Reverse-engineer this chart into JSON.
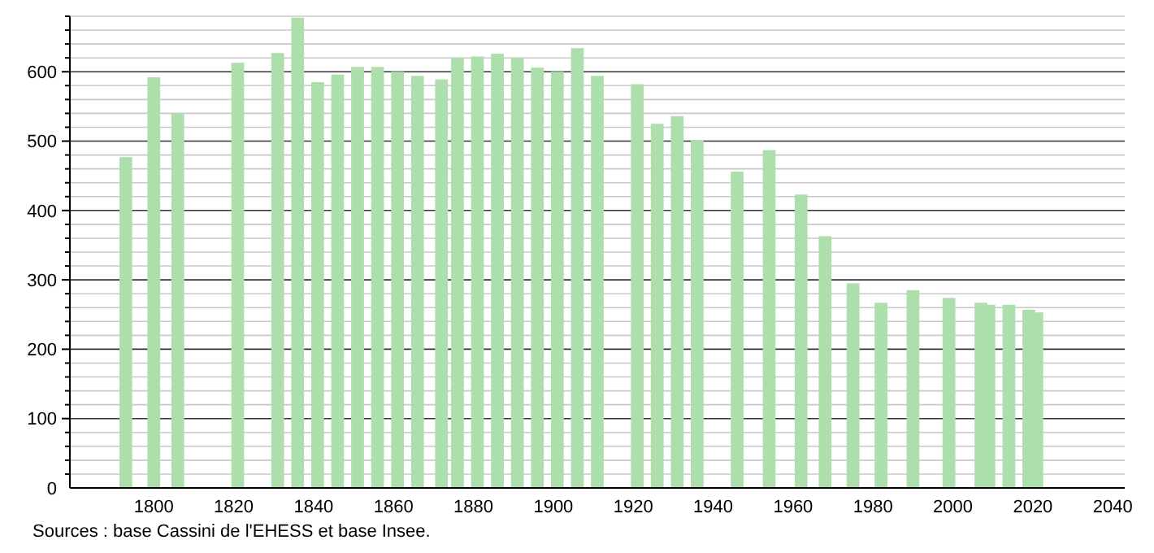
{
  "chart_data": {
    "type": "bar",
    "color": "#addfad",
    "x": [
      1793,
      1800,
      1806,
      1821,
      1831,
      1836,
      1841,
      1846,
      1851,
      1856,
      1861,
      1866,
      1872,
      1876,
      1881,
      1886,
      1891,
      1896,
      1901,
      1906,
      1911,
      1921,
      1926,
      1931,
      1936,
      1946,
      1954,
      1962,
      1968,
      1975,
      1982,
      1990,
      1999,
      2007,
      2009,
      2014,
      2019,
      2021
    ],
    "values": [
      477,
      592,
      540,
      613,
      627,
      678,
      585,
      596,
      607,
      607,
      600,
      594,
      589,
      620,
      622,
      626,
      620,
      606,
      600,
      634,
      594,
      582,
      525,
      536,
      501,
      456,
      487,
      423,
      363,
      295,
      267,
      285,
      274,
      267,
      264,
      264,
      257,
      253
    ],
    "xlim": [
      1779,
      2043
    ],
    "xticks": [
      1800,
      1820,
      1840,
      1860,
      1880,
      1900,
      1920,
      1940,
      1960,
      1980,
      2000,
      2020,
      2040
    ],
    "ylim": [
      0,
      680
    ],
    "yticks": [
      0,
      {
        "value": 20,
        "label": null
      },
      {
        "value": 40,
        "label": null
      },
      {
        "value": 60,
        "label": null
      },
      {
        "value": 80,
        "label": null
      },
      100,
      {
        "value": 120,
        "label": null
      },
      {
        "value": 140,
        "label": null
      },
      {
        "value": 160,
        "label": null
      },
      {
        "value": 180,
        "label": null
      },
      200,
      {
        "value": 220,
        "label": null
      },
      {
        "value": 240,
        "label": null
      },
      {
        "value": 260,
        "label": null
      },
      {
        "value": 280,
        "label": null
      },
      300,
      {
        "value": 320,
        "label": null
      },
      {
        "value": 340,
        "label": null
      },
      {
        "value": 360,
        "label": null
      },
      {
        "value": 380,
        "label": null
      },
      400,
      {
        "value": 420,
        "label": null
      },
      {
        "value": 440,
        "label": null
      },
      {
        "value": 460,
        "label": null
      },
      {
        "value": 480,
        "label": null
      },
      500,
      {
        "value": 520,
        "label": null
      },
      {
        "value": 540,
        "label": null
      },
      {
        "value": 560,
        "label": null
      },
      {
        "value": 580,
        "label": null
      },
      600,
      {
        "value": 620,
        "label": null
      },
      {
        "value": 640,
        "label": null
      },
      {
        "value": 660,
        "label": null
      },
      {
        "value": 680,
        "label": null
      }
    ],
    "grid": "y",
    "annotations": [
      "Sources : base Cassini de l'EHESS et base Insee."
    ]
  }
}
